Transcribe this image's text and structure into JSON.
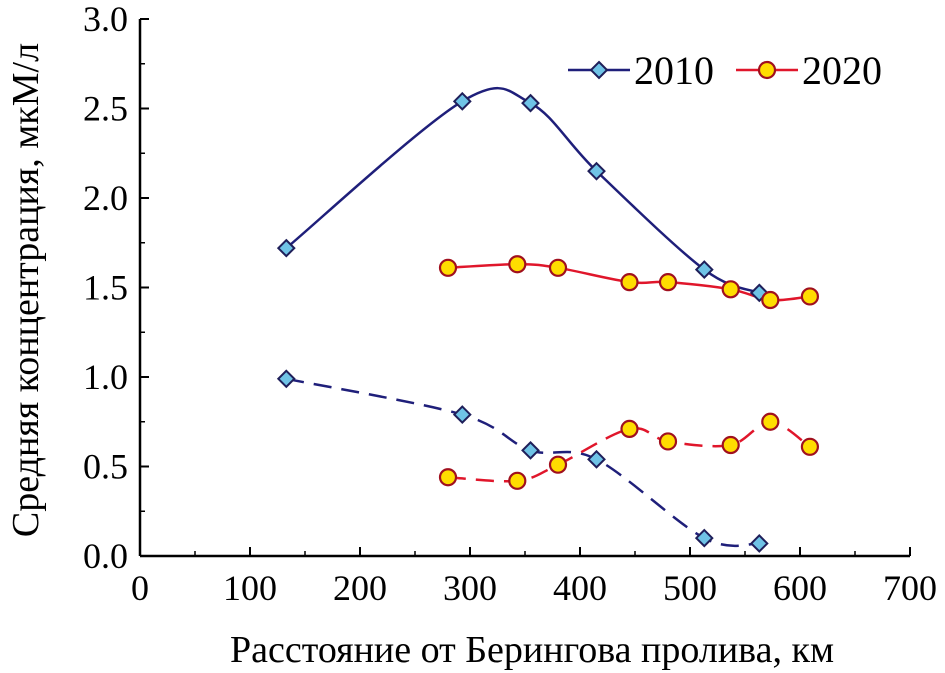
{
  "chart_data": {
    "type": "line",
    "xlabel": "Расстояние от Берингова пролива, км",
    "ylabel": "Средняя концентрация, мкМ/л",
    "xlim": [
      0,
      700
    ],
    "ylim": [
      0.0,
      3.0
    ],
    "x_ticks": [
      "0",
      "100",
      "200",
      "300",
      "400",
      "500",
      "600",
      "700"
    ],
    "y_ticks": [
      "0.0",
      "0.5",
      "1.0",
      "1.5",
      "2.0",
      "2.5",
      "3.0"
    ],
    "legend_position": "top-right",
    "series": [
      {
        "name": "2010",
        "style": "solid",
        "color": "#1f1f7a",
        "marker": "diamond",
        "marker_color": "#6fc3e6",
        "points": [
          [
            133,
            1.72
          ],
          [
            293,
            2.54
          ],
          [
            355,
            2.53
          ],
          [
            415,
            2.15
          ],
          [
            513,
            1.6
          ],
          [
            563,
            1.47
          ]
        ]
      },
      {
        "name": "2020",
        "style": "solid",
        "color": "#e0162b",
        "marker": "circle",
        "marker_color": "#ffdd00",
        "points": [
          [
            280,
            1.61
          ],
          [
            343,
            1.63
          ],
          [
            380,
            1.61
          ],
          [
            445,
            1.53
          ],
          [
            480,
            1.53
          ],
          [
            537,
            1.49
          ],
          [
            573,
            1.43
          ],
          [
            609,
            1.45
          ]
        ]
      },
      {
        "name": "2010",
        "style": "dashed",
        "color": "#1f1f7a",
        "marker": "diamond",
        "marker_color": "#6fc3e6",
        "points": [
          [
            133,
            0.99
          ],
          [
            293,
            0.79
          ],
          [
            355,
            0.59
          ],
          [
            415,
            0.54
          ],
          [
            513,
            0.1
          ],
          [
            563,
            0.07
          ]
        ]
      },
      {
        "name": "2020",
        "style": "dashed",
        "color": "#e0162b",
        "marker": "circle",
        "marker_color": "#ffdd00",
        "points": [
          [
            280,
            0.44
          ],
          [
            343,
            0.42
          ],
          [
            380,
            0.51
          ],
          [
            445,
            0.71
          ],
          [
            480,
            0.64
          ],
          [
            537,
            0.62
          ],
          [
            573,
            0.75
          ],
          [
            609,
            0.61
          ]
        ]
      }
    ],
    "legend": [
      {
        "label": "2010",
        "color": "#1f1f7a",
        "marker": "diamond",
        "marker_color": "#6fc3e6"
      },
      {
        "label": "2020",
        "color": "#e0162b",
        "marker": "circle",
        "marker_color": "#ffdd00"
      }
    ]
  }
}
